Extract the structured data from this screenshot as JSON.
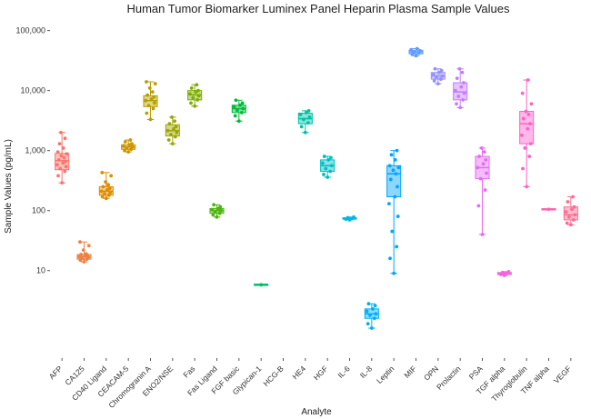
{
  "chart_data": {
    "type": "box",
    "title": "Human Tumor Biomarker Luminex Panel Heparin Plasma Sample Values",
    "xlabel": "Analyte",
    "ylabel": "Sample Values (pg/mL)",
    "yscale": "log10",
    "ylim": [
      0.4,
      150000
    ],
    "yticks": [
      10,
      100,
      1000,
      10000,
      100000
    ],
    "ytick_labels": [
      "10",
      "100",
      "1,000",
      "10,000",
      "100,000"
    ],
    "grid": false,
    "legend": "none",
    "categories": [
      "AFP",
      "CA125",
      "CD40 Ligand",
      "CEACAM-5",
      "Chromogranin A",
      "ENO2/NSE",
      "Fas",
      "Fas Ligand",
      "FGF basic",
      "Glypican-1",
      "HCG-B",
      "HE4",
      "HGF",
      "IL-6",
      "IL-8",
      "Leptin",
      "MIF",
      "OPN",
      "Prolactin",
      "PSA",
      "TGF alpha",
      "Thyroglobulin",
      "TNF alpha",
      "VEGF"
    ],
    "colors": [
      "#F8766D",
      "#EE8043",
      "#E08B00",
      "#CD9600",
      "#B79F00",
      "#9DA700",
      "#7CAE00",
      "#4FB411",
      "#00BA38",
      "#00BE6C",
      "#00C08B",
      "#00C1A7",
      "#00BFC4",
      "#00B8E3",
      "#00B0F6",
      "#00A5FF",
      "#619CFF",
      "#9590FF",
      "#C77CFF",
      "#E76BF3",
      "#F564E3",
      "#FE62CB",
      "#FF65AE",
      "#FF6C91"
    ],
    "series": [
      {
        "name": "AFP",
        "min": 290,
        "q1": 480,
        "median": 680,
        "q3": 900,
        "max": 2000,
        "points": [
          290,
          380,
          450,
          500,
          540,
          580,
          620,
          660,
          700,
          760,
          820,
          880,
          950,
          1100,
          1300,
          1600,
          2000
        ]
      },
      {
        "name": "CA125",
        "min": 14,
        "q1": 15.5,
        "median": 17,
        "q3": 18.5,
        "max": 30,
        "points": [
          14,
          15,
          15.5,
          16,
          16.5,
          17,
          17.5,
          18,
          18.5,
          19,
          22,
          26,
          30
        ]
      },
      {
        "name": "CD40 Ligand",
        "min": 160,
        "q1": 180,
        "median": 210,
        "q3": 250,
        "max": 430,
        "points": [
          160,
          170,
          180,
          190,
          200,
          210,
          220,
          235,
          250,
          270,
          300,
          380,
          430
        ]
      },
      {
        "name": "CEACAM-5",
        "min": 950,
        "q1": 1050,
        "median": 1150,
        "q3": 1250,
        "max": 1500,
        "points": [
          950,
          1000,
          1050,
          1100,
          1150,
          1200,
          1250,
          1300,
          1400,
          1500
        ]
      },
      {
        "name": "Chromogranin A",
        "min": 3300,
        "q1": 5400,
        "median": 6800,
        "q3": 8200,
        "max": 14000,
        "points": [
          3300,
          4200,
          5000,
          5600,
          6200,
          6800,
          7200,
          7800,
          8400,
          9500,
          11000,
          13000,
          14000
        ]
      },
      {
        "name": "ENO2/NSE",
        "min": 1300,
        "q1": 1750,
        "median": 2150,
        "q3": 2700,
        "max": 3600,
        "points": [
          1300,
          1500,
          1700,
          1850,
          2000,
          2150,
          2300,
          2500,
          2800,
          3100,
          3600
        ]
      },
      {
        "name": "Fas",
        "min": 5500,
        "q1": 7000,
        "median": 8500,
        "q3": 10000,
        "max": 12500,
        "points": [
          5500,
          6200,
          7000,
          7600,
          8200,
          8800,
          9500,
          10000,
          11000,
          12500
        ]
      },
      {
        "name": "Fas Ligand",
        "min": 78,
        "q1": 90,
        "median": 100,
        "q3": 108,
        "max": 125,
        "points": [
          78,
          85,
          90,
          95,
          100,
          104,
          108,
          115,
          125
        ]
      },
      {
        "name": "FGF basic",
        "min": 3100,
        "q1": 4300,
        "median": 5000,
        "q3": 5700,
        "max": 6900,
        "points": [
          3100,
          3800,
          4300,
          4700,
          5000,
          5400,
          5700,
          6200,
          6900
        ]
      },
      {
        "name": "Glypican-1",
        "min": 5.8,
        "q1": 5.8,
        "median": 5.8,
        "q3": 5.8,
        "max": 5.8,
        "points": [
          5.8
        ]
      },
      {
        "name": "HCG-B",
        "min": null,
        "q1": null,
        "median": null,
        "q3": null,
        "max": null,
        "points": []
      },
      {
        "name": "HE4",
        "min": 2000,
        "q1": 2800,
        "median": 3400,
        "q3": 4200,
        "max": 4600,
        "points": [
          2000,
          2500,
          2900,
          3300,
          3600,
          4000,
          4300,
          4600
        ]
      },
      {
        "name": "HGF",
        "min": 360,
        "q1": 450,
        "median": 560,
        "q3": 700,
        "max": 800,
        "points": [
          360,
          400,
          450,
          500,
          560,
          620,
          700,
          760,
          800
        ]
      },
      {
        "name": "IL-6",
        "min": 70,
        "q1": 72,
        "median": 74,
        "q3": 76,
        "max": 78,
        "points": [
          70,
          72,
          74,
          76,
          78
        ]
      },
      {
        "name": "IL-8",
        "min": 1.1,
        "q1": 1.6,
        "median": 1.9,
        "q3": 2.3,
        "max": 2.8,
        "points": [
          1.1,
          1.3,
          1.6,
          1.8,
          1.9,
          2.1,
          2.3,
          2.6,
          2.8
        ]
      },
      {
        "name": "Leptin",
        "min": 9,
        "q1": 170,
        "median": 410,
        "q3": 560,
        "max": 1000,
        "points": [
          9,
          16,
          25,
          45,
          80,
          130,
          170,
          250,
          330,
          410,
          470,
          520,
          560,
          700,
          850,
          1000
        ]
      },
      {
        "name": "MIF",
        "min": 38000,
        "q1": 41000,
        "median": 44000,
        "q3": 47000,
        "max": 50000,
        "points": [
          38000,
          40000,
          42000,
          44000,
          46000,
          48000,
          50000
        ]
      },
      {
        "name": "OPN",
        "min": 13000,
        "q1": 15500,
        "median": 17500,
        "q3": 20000,
        "max": 23000,
        "points": [
          13000,
          14500,
          15500,
          16500,
          17500,
          18500,
          20000,
          21500,
          23000
        ]
      },
      {
        "name": "Prolactin",
        "min": 5200,
        "q1": 7000,
        "median": 9500,
        "q3": 13500,
        "max": 23000,
        "points": [
          5200,
          6000,
          7000,
          8000,
          9000,
          10000,
          11500,
          13500,
          16000,
          20000,
          23000
        ]
      },
      {
        "name": "PSA",
        "min": 40,
        "q1": 340,
        "median": 520,
        "q3": 800,
        "max": 1100,
        "points": [
          40,
          120,
          220,
          340,
          420,
          520,
          600,
          700,
          800,
          950,
          1100
        ]
      },
      {
        "name": "TGF alpha",
        "min": 8.3,
        "q1": 8.6,
        "median": 9,
        "q3": 9.3,
        "max": 9.6,
        "points": [
          8.3,
          8.6,
          9,
          9.3,
          9.6
        ]
      },
      {
        "name": "Thyroglobulin",
        "min": 250,
        "q1": 1300,
        "median": 2800,
        "q3": 4500,
        "max": 15000,
        "points": [
          250,
          500,
          800,
          1100,
          1300,
          1800,
          2300,
          2800,
          3400,
          4000,
          4500,
          6000,
          9000,
          15000
        ]
      },
      {
        "name": "TNF alpha",
        "min": 105,
        "q1": 105,
        "median": 105,
        "q3": 105,
        "max": 105,
        "points": [
          105
        ]
      },
      {
        "name": "VEGF",
        "min": 58,
        "q1": 70,
        "median": 85,
        "q3": 115,
        "max": 170,
        "points": [
          58,
          62,
          70,
          78,
          85,
          95,
          105,
          115,
          140,
          170
        ]
      }
    ]
  }
}
